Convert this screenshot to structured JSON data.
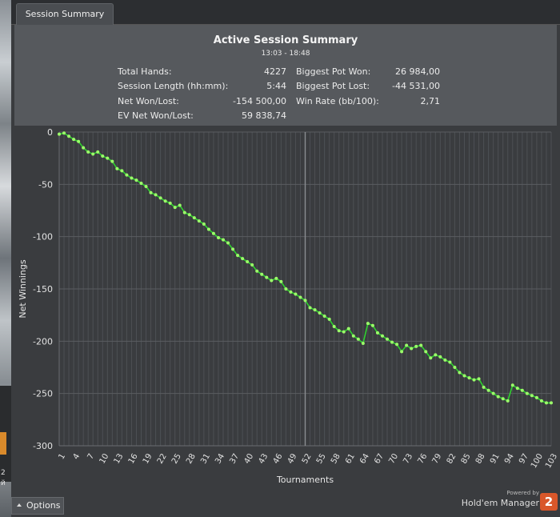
{
  "window": {
    "tab_label": "Session Summary"
  },
  "summary": {
    "title": "Active Session Summary",
    "time_range": "13:03 - 18:48",
    "left_stats": [
      {
        "label": "Total Hands:",
        "value": "4227"
      },
      {
        "label": "Session Length (hh:mm):",
        "value": "5:44"
      },
      {
        "label": "Net Won/Lost:",
        "value": "-154 500,00"
      },
      {
        "label": "EV Net Won/Lost:",
        "value": "59 838,74"
      }
    ],
    "right_stats": [
      {
        "label": "Biggest Pot Won:",
        "value": "26 984,00"
      },
      {
        "label": "Biggest Pot Lost:",
        "value": "-44 531,00"
      },
      {
        "label": "Win Rate (bb/100):",
        "value": "2,71"
      }
    ]
  },
  "chart_data": {
    "type": "line",
    "xlabel": "Tournaments",
    "ylabel": "Net Winnings",
    "ylim": [
      -300,
      0
    ],
    "xlim": [
      1,
      103
    ],
    "yticks": [
      0,
      -50,
      -100,
      -150,
      -200,
      -250,
      -300
    ],
    "xticks": [
      "1",
      "4",
      "7",
      "10",
      "13",
      "16",
      "19",
      "22",
      "25",
      "28",
      "31",
      "34",
      "37",
      "40",
      "43",
      "46",
      "49",
      "52",
      "55",
      "58",
      "61",
      "64",
      "67",
      "70",
      "73",
      "76",
      "79",
      "82",
      "85",
      "88",
      "91",
      "94",
      "97",
      "100",
      "103"
    ],
    "vertical_marker_x": 52,
    "grid": true,
    "colors": {
      "line": "#2fd12f",
      "marker": "#9cff6a",
      "background": "#3a3c3f",
      "grid": "#4d5054"
    },
    "series": [
      {
        "x": [
          1,
          2,
          3,
          4,
          5,
          6,
          7,
          8,
          9,
          10,
          11,
          12,
          13,
          14,
          15,
          16,
          17,
          18,
          19,
          20,
          21,
          22,
          23,
          24,
          25,
          26,
          27,
          28,
          29,
          30,
          31,
          32,
          33,
          34,
          35,
          36,
          37,
          38,
          39,
          40,
          41,
          42,
          43,
          44,
          45,
          46,
          47,
          48,
          49,
          50,
          51,
          52,
          53,
          54,
          55,
          56,
          57,
          58,
          59,
          60,
          61,
          62,
          63,
          64,
          65,
          66,
          67,
          68,
          69,
          70,
          71,
          72,
          73,
          74,
          75,
          76,
          77,
          78,
          79,
          80,
          81,
          82,
          83,
          84,
          85,
          86,
          87,
          88,
          89,
          90,
          91,
          92,
          93,
          94,
          95,
          96,
          97,
          98,
          99,
          100,
          101,
          102,
          103
        ],
        "values": [
          -2,
          -1,
          -4,
          -7,
          -9,
          -15,
          -19,
          -21,
          -19,
          -23,
          -25,
          -28,
          -35,
          -37,
          -41,
          -44,
          -46,
          -49,
          -52,
          -58,
          -60,
          -63,
          -66,
          -68,
          -72,
          -70,
          -77,
          -79,
          -82,
          -85,
          -88,
          -93,
          -97,
          -101,
          -103,
          -106,
          -112,
          -118,
          -121,
          -124,
          -127,
          -133,
          -136,
          -139,
          -142,
          -140,
          -143,
          -150,
          -153,
          -155,
          -158,
          -161,
          -168,
          -170,
          -173,
          -176,
          -179,
          -186,
          -190,
          -191,
          -188,
          -195,
          -198,
          -202,
          -183,
          -185,
          -192,
          -195,
          -198,
          -201,
          -203,
          -210,
          -204,
          -207,
          -205,
          -204,
          -210,
          -216,
          -213,
          -215,
          -218,
          -220,
          -225,
          -230,
          -233,
          -235,
          -237,
          -236,
          -244,
          -247,
          -250,
          -253,
          -255,
          -257,
          -242,
          -245,
          -247,
          -250,
          -252,
          -254,
          -257,
          -259,
          -259
        ]
      }
    ]
  },
  "footer": {
    "options_label": "Options",
    "powered_by": "Powered by",
    "brand": "Hold'em Manager",
    "brand_number": "2"
  },
  "background": {
    "side_text_1": "2",
    "side_text_2": "й"
  }
}
